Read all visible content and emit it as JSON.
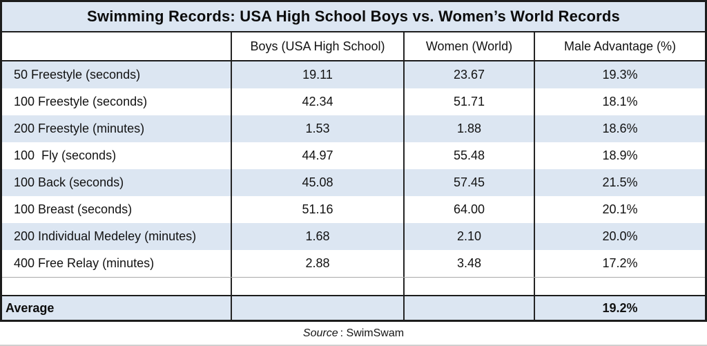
{
  "chart_data": {
    "type": "table",
    "title": "Swimming Records: USA High School Boys vs. Women’s World Records",
    "columns": {
      "event": "",
      "boys": "Boys (USA High School)",
      "women": "Women (World)",
      "advantage": "Male Advantage (%)"
    },
    "rows": [
      {
        "event": "50 Freestyle (seconds)",
        "boys": "19.11",
        "women": "23.67",
        "advantage": "19.3%"
      },
      {
        "event": "100 Freestyle (seconds)",
        "boys": "42.34",
        "women": "51.71",
        "advantage": "18.1%"
      },
      {
        "event": "200 Freestyle (minutes)",
        "boys": "1.53",
        "women": "1.88",
        "advantage": "18.6%"
      },
      {
        "event": "100  Fly (seconds)",
        "boys": "44.97",
        "women": "55.48",
        "advantage": "18.9%"
      },
      {
        "event": "100 Back (seconds)",
        "boys": "45.08",
        "women": "57.45",
        "advantage": "21.5%"
      },
      {
        "event": "100 Breast (seconds)",
        "boys": "51.16",
        "women": "64.00",
        "advantage": "20.1%"
      },
      {
        "event": "200 Individual Medeley (minutes)",
        "boys": "1.68",
        "women": "2.10",
        "advantage": "20.0%"
      },
      {
        "event": "400 Free Relay (minutes)",
        "boys": "2.88",
        "women": "3.48",
        "advantage": "17.2%"
      }
    ],
    "average": {
      "label": "Average",
      "advantage": "19.2%"
    },
    "source_label": "Source",
    "source_rest": ": SwimSwam",
    "layout": {
      "row_striping": "alternating blue/white starting blue",
      "legend": "none",
      "grid": "black column dividers, thick outer border"
    },
    "colors": {
      "row_blue": "#dce6f2",
      "border_dark": "#1c1c1c",
      "text": "#121212"
    }
  }
}
